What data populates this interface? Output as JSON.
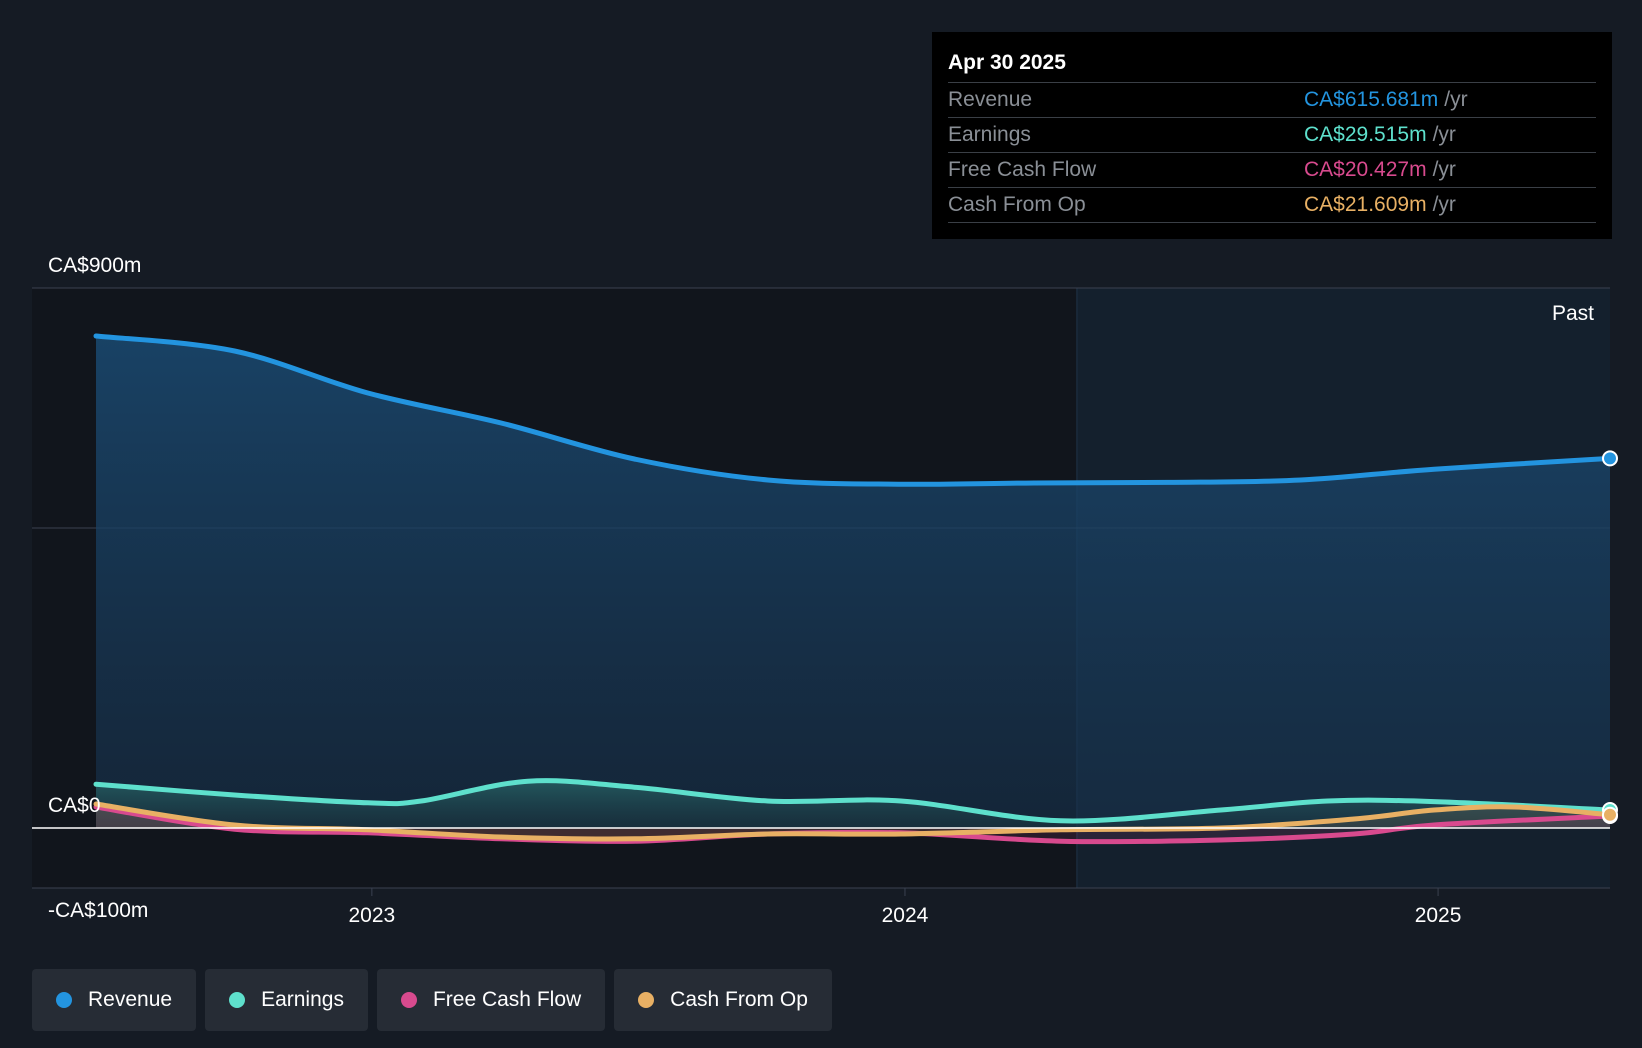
{
  "chart_data": {
    "type": "area",
    "title": "",
    "currency_prefix": "CA$",
    "y_axis": {
      "min": -100,
      "max": 900,
      "unit": "m",
      "labels": [
        {
          "value": 900,
          "text": "CA$900m"
        },
        {
          "value": 0,
          "text": "CA$0"
        },
        {
          "value": -100,
          "text": "-CA$100m"
        }
      ]
    },
    "x_axis": {
      "min": 2022.37,
      "max": 2025.33,
      "ticks": [
        {
          "value": 2023.0,
          "text": "2023"
        },
        {
          "value": 2024.0,
          "text": "2024"
        },
        {
          "value": 2025.0,
          "text": "2025"
        }
      ]
    },
    "past_region_start": 2024.33,
    "past_label": "Past",
    "series": [
      {
        "name": "Revenue",
        "color": "#2394df",
        "x": [
          2022.5,
          2022.75,
          2023.0,
          2023.25,
          2023.5,
          2023.75,
          2024.0,
          2024.25,
          2024.5,
          2024.75,
          2025.0,
          2025.33
        ],
        "values": [
          820,
          795,
          725,
          675,
          615,
          580,
          573,
          575,
          576,
          580,
          598,
          616
        ]
      },
      {
        "name": "Earnings",
        "color": "#5ee0cc",
        "x": [
          2022.5,
          2022.75,
          2023.0,
          2023.1,
          2023.3,
          2023.5,
          2023.75,
          2024.0,
          2024.3,
          2024.6,
          2024.8,
          2025.0,
          2025.33
        ],
        "values": [
          73,
          55,
          42,
          45,
          78,
          68,
          45,
          45,
          12,
          30,
          45,
          44,
          30
        ]
      },
      {
        "name": "Free Cash Flow",
        "color": "#d84a8e",
        "x": [
          2022.5,
          2022.75,
          2023.0,
          2023.25,
          2023.5,
          2023.75,
          2024.0,
          2024.3,
          2024.6,
          2024.85,
          2025.0,
          2025.33
        ],
        "values": [
          35,
          -2,
          -8,
          -18,
          -22,
          -10,
          -8,
          -22,
          -20,
          -10,
          5,
          20
        ]
      },
      {
        "name": "Cash From Op",
        "color": "#e8b064",
        "x": [
          2022.5,
          2022.75,
          2023.0,
          2023.25,
          2023.5,
          2023.75,
          2024.0,
          2024.3,
          2024.6,
          2024.85,
          2025.0,
          2025.15,
          2025.33
        ],
        "values": [
          40,
          5,
          -3,
          -15,
          -18,
          -10,
          -10,
          -3,
          0,
          15,
          30,
          35,
          22
        ]
      }
    ],
    "legend": [
      "Revenue",
      "Earnings",
      "Free Cash Flow",
      "Cash From Op"
    ]
  },
  "tooltip": {
    "date": "Apr 30 2025",
    "rows": [
      {
        "label": "Revenue",
        "value": "CA$615.681m",
        "unit": "/yr",
        "color": "#2394df"
      },
      {
        "label": "Earnings",
        "value": "CA$29.515m",
        "unit": "/yr",
        "color": "#5ee0cc"
      },
      {
        "label": "Free Cash Flow",
        "value": "CA$20.427m",
        "unit": "/yr",
        "color": "#d84a8e"
      },
      {
        "label": "Cash From Op",
        "value": "CA$21.609m",
        "unit": "/yr",
        "color": "#e8b064"
      }
    ]
  },
  "legend_items": [
    {
      "label": "Revenue",
      "color": "#2394df"
    },
    {
      "label": "Earnings",
      "color": "#5ee0cc"
    },
    {
      "label": "Free Cash Flow",
      "color": "#d84a8e"
    },
    {
      "label": "Cash From Op",
      "color": "#e8b064"
    }
  ]
}
